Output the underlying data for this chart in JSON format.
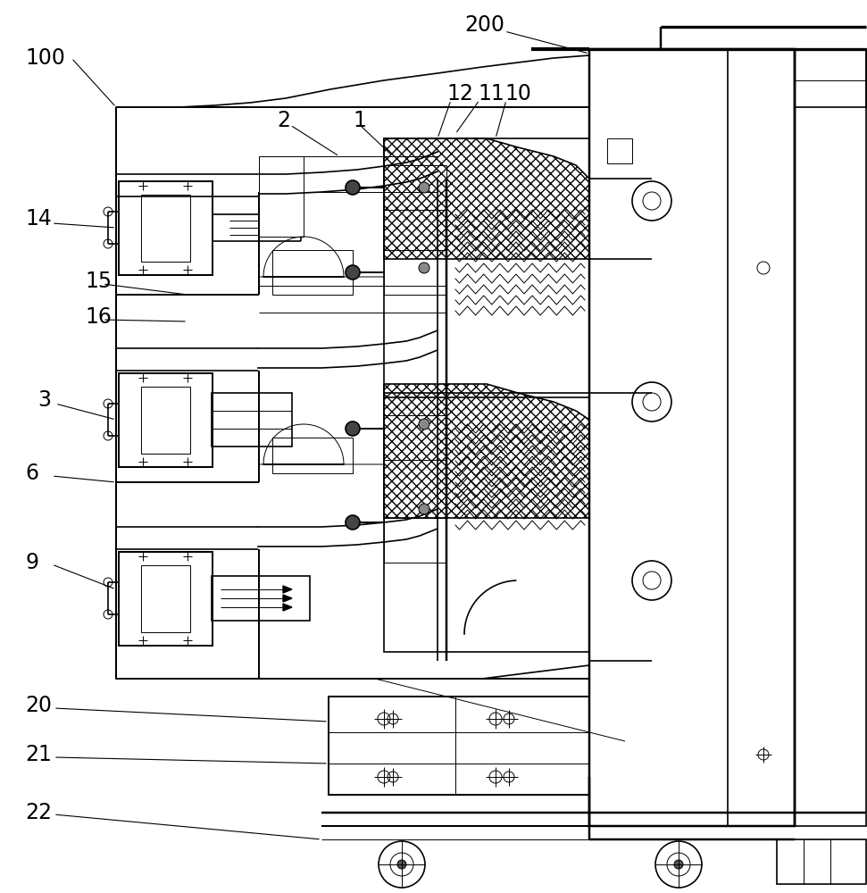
{
  "bg_color": "#ffffff",
  "lc": "#000000",
  "lw": 1.2,
  "tlw": 0.7,
  "label_fs": 17,
  "fig_w": 9.71,
  "fig_h": 10.0,
  "dpi": 100
}
